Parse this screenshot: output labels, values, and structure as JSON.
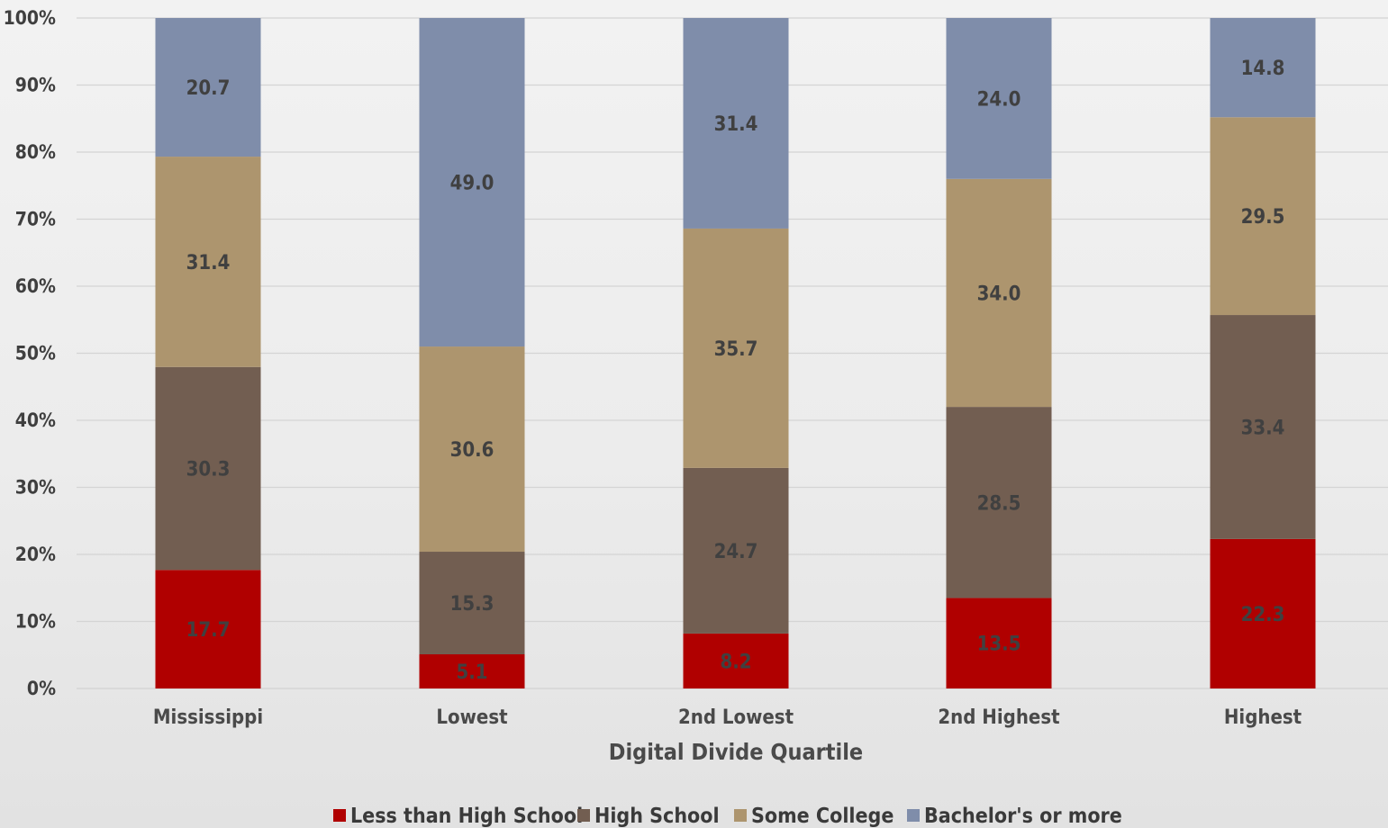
{
  "chart_data": {
    "type": "bar",
    "stacked": true,
    "percent_stacked": true,
    "title": "",
    "xlabel": "Digital Divide Quartile",
    "ylabel": "",
    "ylim": [
      0,
      100
    ],
    "y_ticks": [
      "0%",
      "10%",
      "20%",
      "30%",
      "40%",
      "50%",
      "60%",
      "70%",
      "80%",
      "90%",
      "100%"
    ],
    "categories": [
      "Mississippi",
      "Lowest",
      "2nd Lowest",
      "2nd Highest",
      "Highest"
    ],
    "series": [
      {
        "name": "Less than High School",
        "color": "#b00000",
        "values": [
          17.7,
          5.1,
          8.2,
          13.5,
          22.3
        ]
      },
      {
        "name": "High School",
        "color": "#725e51",
        "values": [
          30.3,
          15.3,
          24.7,
          28.5,
          33.4
        ]
      },
      {
        "name": "Some College",
        "color": "#ad956e",
        "values": [
          31.4,
          30.6,
          35.7,
          34.0,
          29.5
        ]
      },
      {
        "name": "Bachelor's or more",
        "color": "#7f8daa",
        "values": [
          20.7,
          49.0,
          31.4,
          24.0,
          14.8
        ]
      }
    ],
    "grid": true,
    "legend_position": "bottom"
  }
}
